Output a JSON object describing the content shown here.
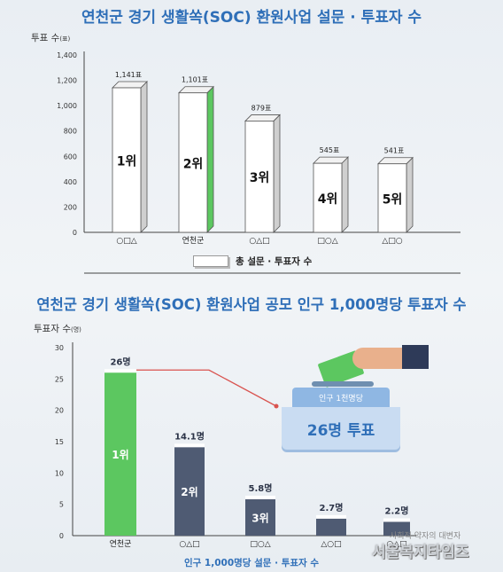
{
  "chart_data": [
    {
      "type": "bar",
      "title": "연천군 경기 생활쏙(SOC) 환원사업 설문 · 투표자 수",
      "ylabel": "투표 수",
      "yunit": "(표)",
      "ylim": [
        0,
        1400
      ],
      "yticks": [
        "0",
        "200",
        "400",
        "600",
        "800",
        "1,000",
        "1,200",
        "1,400"
      ],
      "categories": [
        "○□△",
        "연천군",
        "○△□",
        "□○△",
        "△□○"
      ],
      "values": [
        1141,
        1101,
        879,
        545,
        541
      ],
      "value_labels": [
        "1,141표",
        "1,101표",
        "879표",
        "545표",
        "541표"
      ],
      "rank_labels": [
        "1위",
        "2위",
        "3위",
        "4위",
        "5위"
      ],
      "highlight_index": 1,
      "legend": "총 설문 · 투표자 수",
      "grid": false
    },
    {
      "type": "bar",
      "title": "연천군 경기 생활쏙(SOC) 환원사업 공모 인구 1,000명당 투표자 수",
      "ylabel": "투표자 수",
      "yunit": "(명)",
      "ylim": [
        0,
        30
      ],
      "yticks": [
        "0",
        "5",
        "10",
        "15",
        "20",
        "25",
        "30"
      ],
      "categories": [
        "연천군",
        "○△□",
        "□○△",
        "△○□",
        "○△□"
      ],
      "values": [
        26,
        14.1,
        5.8,
        2.7,
        2.2
      ],
      "value_labels": [
        "26명",
        "14.1명",
        "5.8명",
        "2.7명",
        "2.2명"
      ],
      "rank_labels": [
        "1위",
        "2위",
        "3위",
        "",
        ""
      ],
      "highlight_index": 0,
      "legend": "인구 1,000명당 설문 · 투표자 수",
      "callout_top": "인구 1천명당",
      "callout_main": "26명 투표",
      "grid": false
    }
  ],
  "watermark": {
    "line1": "사회적 약자의 대변자",
    "line2": "서울복지타임즈"
  },
  "colors": {
    "title": "#2f6fb8",
    "highlight": "#5cc760",
    "bar2": "#4f5b73",
    "bar1": "#ffffff",
    "connector": "#d9534f"
  }
}
